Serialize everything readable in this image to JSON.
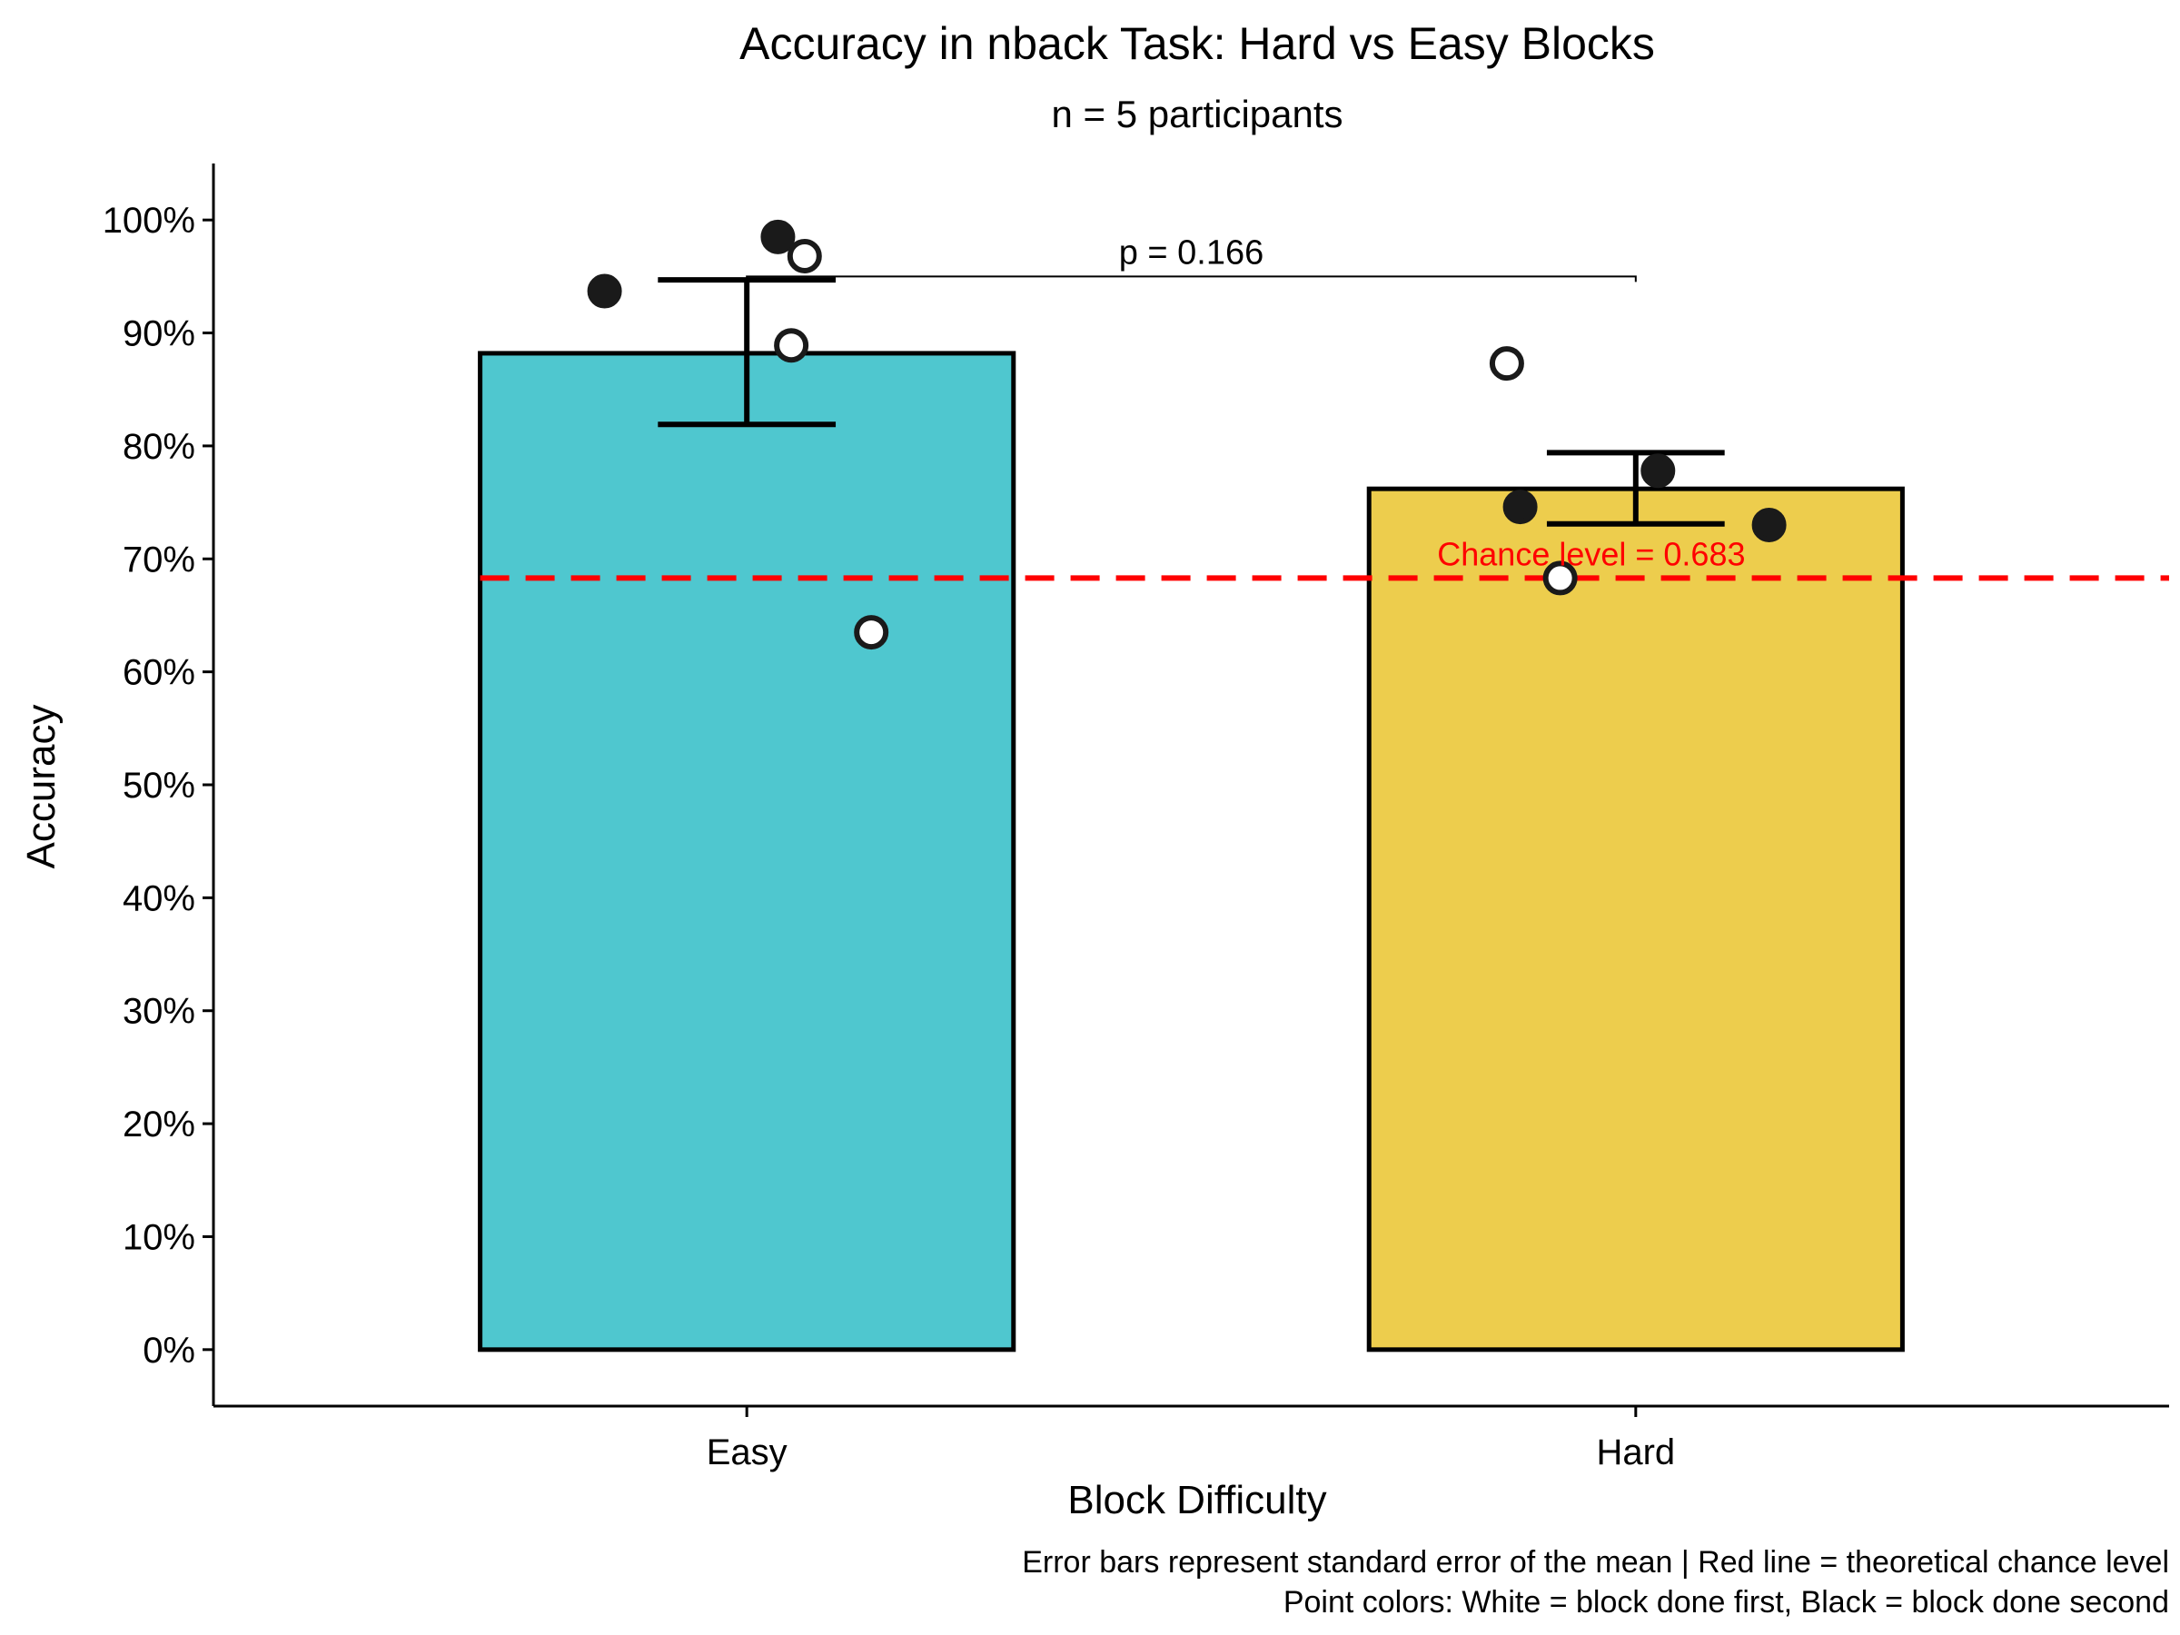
{
  "chart_data": {
    "type": "bar",
    "title": "Accuracy in nback Task: Hard vs Easy Blocks",
    "subtitle": "n = 5 participants",
    "xlabel": "Block Difficulty",
    "ylabel": "Accuracy",
    "categories": [
      "Easy",
      "Hard"
    ],
    "values": [
      0.882,
      0.762
    ],
    "error_bars": [
      {
        "lower": 0.819,
        "upper": 0.947
      },
      {
        "lower": 0.731,
        "upper": 0.794
      }
    ],
    "bar_colors": [
      "#4FC7CF",
      "#EDCD4D"
    ],
    "ylim": [
      -0.05,
      1.05
    ],
    "y_ticks": [
      0,
      0.1,
      0.2,
      0.3,
      0.4,
      0.5,
      0.6,
      0.7,
      0.8,
      0.9,
      1.0
    ],
    "y_tick_labels": [
      "0%",
      "10%",
      "20%",
      "30%",
      "40%",
      "50%",
      "60%",
      "70%",
      "80%",
      "90%",
      "100%"
    ],
    "grid": false,
    "points": [
      {
        "category": "Easy",
        "offset": -0.16,
        "value": 0.937,
        "order": "second",
        "color": "#1a1a1a"
      },
      {
        "category": "Easy",
        "offset": 0.035,
        "value": 0.985,
        "order": "second",
        "color": "#1a1a1a"
      },
      {
        "category": "Easy",
        "offset": 0.065,
        "value": 0.968,
        "order": "first",
        "color": "#ffffff"
      },
      {
        "category": "Easy",
        "offset": 0.05,
        "value": 0.889,
        "order": "first",
        "color": "#ffffff"
      },
      {
        "category": "Easy",
        "offset": 0.14,
        "value": 0.635,
        "order": "first",
        "color": "#ffffff"
      },
      {
        "category": "Hard",
        "offset": -0.145,
        "value": 0.873,
        "order": "first",
        "color": "#ffffff"
      },
      {
        "category": "Hard",
        "offset": -0.13,
        "value": 0.746,
        "order": "second",
        "color": "#1a1a1a"
      },
      {
        "category": "Hard",
        "offset": 0.025,
        "value": 0.778,
        "order": "second",
        "color": "#1a1a1a"
      },
      {
        "category": "Hard",
        "offset": 0.15,
        "value": 0.73,
        "order": "second",
        "color": "#1a1a1a"
      },
      {
        "category": "Hard",
        "offset": -0.085,
        "value": 0.683,
        "order": "first",
        "color": "#ffffff"
      }
    ],
    "reference_line": {
      "value": 0.683,
      "label": "Chance level = 0.683",
      "color": "#FF0000",
      "style": "dashed"
    },
    "significance": {
      "from": "Easy",
      "to": "Hard",
      "y": 0.95,
      "label": "p = 0.166"
    },
    "caption": [
      "Error bars represent standard error of the mean | Red line = theoretical chance level",
      "Point colors: White = block done first, Black = block done second"
    ]
  }
}
